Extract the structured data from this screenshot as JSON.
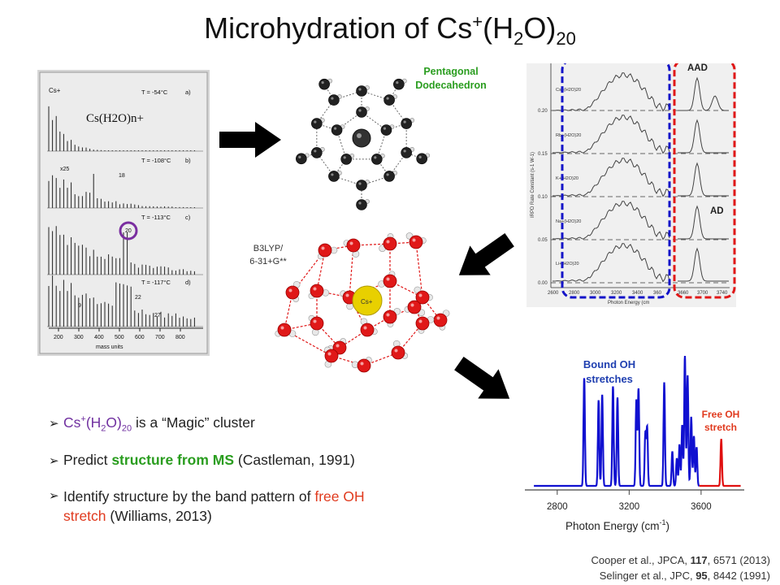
{
  "title": {
    "main": "Microhydration of Cs",
    "sup": "+",
    "mid1": "(H",
    "sub1": "2",
    "mid2": "O)",
    "sub2": "20"
  },
  "ms_panel": {
    "formula": "Cs(H2O)n+",
    "label_csplus": "Cs+",
    "rows": [
      {
        "temp": "T = -54°C",
        "tag": "a)"
      },
      {
        "temp": "T = -108°C",
        "tag": "b)"
      },
      {
        "temp": "T = -113°C",
        "tag": "c)"
      },
      {
        "temp": "T = -117°C",
        "tag": "d)"
      }
    ],
    "annotations": {
      "x25": "x25",
      "n18": "18",
      "n20": "20",
      "n9": "9",
      "n22": "22",
      "n27": "27"
    },
    "axis_ticks": [
      "200",
      "300",
      "400",
      "500",
      "600",
      "700",
      "800"
    ],
    "axis_label": "mass units"
  },
  "labels": {
    "pentagonal": "Pentagonal Dodecahedron",
    "b3lyp_line1": "B3LYP/",
    "b3lyp_line2": "6-31+G**",
    "cs_atom": "Cs+",
    "aad": "AAD",
    "ad": "AD",
    "bound_oh_line1": "Bound OH",
    "bound_oh_line2": "stretches",
    "free_oh_line1": "Free OH",
    "free_oh_line2": "stretch"
  },
  "irpd_panel": {
    "ylabel": "IRPD Rate Constant (s-1 W-1)",
    "yticks": [
      "0.20",
      "0.15",
      "0.10",
      "0.05",
      "0.00"
    ],
    "xticks_left": [
      "2600",
      "2800",
      "3000",
      "3200",
      "3400",
      "360"
    ],
    "xticks_right": [
      "3660",
      "3700",
      "3740"
    ],
    "xlabel": "Photon Energy (cm",
    "traces": [
      "Cs+(H2O)20",
      "Rb+(H2O)20",
      "K+(H2O)20",
      "Na+(H2O)20",
      "Li+(H2O)20"
    ]
  },
  "chart_data": {
    "type": "line",
    "xlabel": "Photon Energy (cm-1)",
    "xlim": [
      2620,
      3840
    ],
    "xticks": [
      2800,
      3200,
      3600
    ],
    "series": [
      {
        "name": "Bound OH stretches",
        "color": "#1010d0",
        "peaks": [
          [
            2950,
            0.78
          ],
          [
            3030,
            0.62
          ],
          [
            3050,
            0.66
          ],
          [
            3110,
            0.72
          ],
          [
            3135,
            0.64
          ],
          [
            3240,
            0.62
          ],
          [
            3252,
            0.7
          ],
          [
            3290,
            0.38
          ],
          [
            3300,
            0.42
          ],
          [
            3395,
            0.75
          ],
          [
            3440,
            0.25
          ],
          [
            3465,
            0.2
          ],
          [
            3480,
            0.3
          ],
          [
            3495,
            0.44
          ],
          [
            3510,
            0.94
          ],
          [
            3525,
            0.8
          ],
          [
            3545,
            0.5
          ],
          [
            3560,
            0.36
          ],
          [
            3575,
            0.28
          ]
        ]
      },
      {
        "name": "Free OH stretch",
        "color": "#e01010",
        "peaks": [
          [
            3712,
            0.34
          ]
        ]
      }
    ]
  },
  "bullets": [
    {
      "parts": [
        {
          "t": "Cs",
          "c": "purple"
        },
        {
          "t": "+",
          "c": "purple-sup"
        },
        {
          "t": "(H",
          "c": "purple"
        },
        {
          "t": "2",
          "c": "purple-sub"
        },
        {
          "t": "O)",
          "c": "purple"
        },
        {
          "t": "20",
          "c": "purple-sub"
        },
        {
          "t": " is a “Magic” cluster",
          "c": ""
        }
      ]
    },
    {
      "parts": [
        {
          "t": "Predict ",
          "c": ""
        },
        {
          "t": "structure from MS",
          "c": "green"
        },
        {
          "t": " (Castleman, 1991)",
          "c": ""
        }
      ]
    },
    {
      "parts": [
        {
          "t": "Identify structure by the band pattern of ",
          "c": ""
        },
        {
          "t": "free OH stretch",
          "c": "red"
        },
        {
          "t": " (Williams, 2013)",
          "c": ""
        }
      ]
    }
  ],
  "references": [
    {
      "pre": "Cooper et al., JPCA, ",
      "bold": "117",
      "post": ", 6571 (2013)"
    },
    {
      "pre": "Selinger et al., JPC, ",
      "bold": "95",
      "post": ", 8442 (1991)"
    }
  ],
  "colors": {
    "blue_box": "#1414c8",
    "red_box": "#e01818",
    "purple_circle": "#7a2ea0",
    "oxygen": "#e01818",
    "cs_sphere": "#e8d000"
  }
}
